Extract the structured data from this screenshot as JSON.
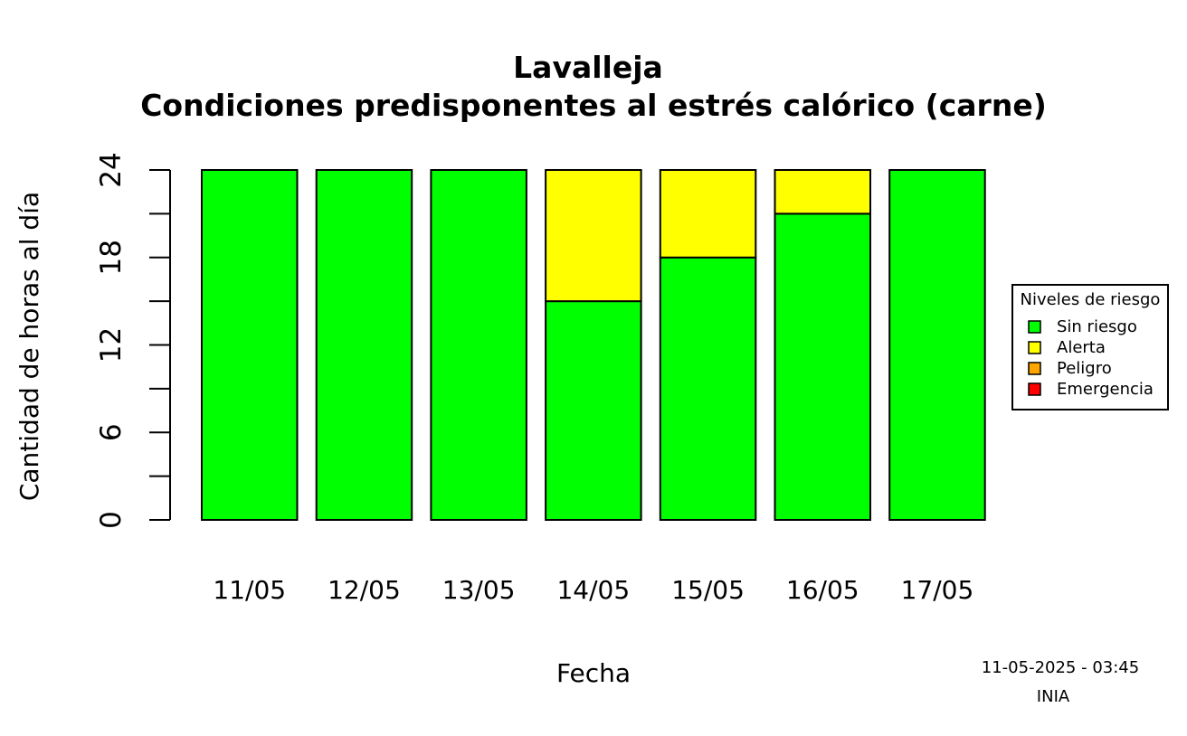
{
  "chart_data": {
    "type": "bar",
    "stacked": true,
    "title": "Lavalleja",
    "subtitle": "Condiciones predisponentes al estrés calórico (carne)",
    "xlabel": "Fecha",
    "ylabel": "Cantidad de horas al día",
    "ylim": [
      0,
      24
    ],
    "yticks": [
      0,
      6,
      12,
      18,
      24
    ],
    "yticks_minor": [
      3,
      9,
      15,
      21
    ],
    "categories": [
      "11/05",
      "12/05",
      "13/05",
      "14/05",
      "15/05",
      "16/05",
      "17/05"
    ],
    "series": [
      {
        "name": "Sin riesgo",
        "color": "#00ff00",
        "values": [
          24,
          24,
          24,
          15,
          18,
          21,
          24
        ]
      },
      {
        "name": "Alerta",
        "color": "#ffff00",
        "values": [
          0,
          0,
          0,
          9,
          6,
          3,
          0
        ]
      },
      {
        "name": "Peligro",
        "color": "#ffa500",
        "values": [
          0,
          0,
          0,
          0,
          0,
          0,
          0
        ]
      },
      {
        "name": "Emergencia",
        "color": "#ff0000",
        "values": [
          0,
          0,
          0,
          0,
          0,
          0,
          0
        ]
      }
    ],
    "legend": {
      "title": "Niveles de riesgo",
      "position": "right",
      "entries": [
        "Sin riesgo",
        "Alerta",
        "Peligro",
        "Emergencia"
      ]
    },
    "grid": false
  },
  "footer": {
    "timestamp": "11-05-2025 - 03:45",
    "source": "INIA"
  }
}
